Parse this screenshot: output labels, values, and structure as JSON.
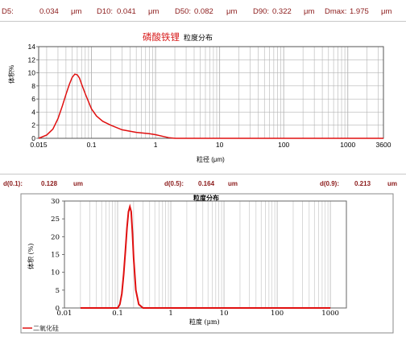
{
  "stats_top": [
    {
      "label": "D5:",
      "value": "0.034",
      "unit": "μm"
    },
    {
      "label": "D10:",
      "value": "0.041",
      "unit": "μm"
    },
    {
      "label": "D50:",
      "value": "0.082",
      "unit": "μm"
    },
    {
      "label": "D90:",
      "value": "0.322",
      "unit": "μm"
    },
    {
      "label": "Dmax:",
      "value": "1.975",
      "unit": "μm"
    }
  ],
  "stats_mid": [
    {
      "label": "d(0.1):",
      "value": "0.128",
      "unit": "um"
    },
    {
      "label": "d(0.5):",
      "value": "0.164",
      "unit": "um"
    },
    {
      "label": "d(0.9):",
      "value": "0.213",
      "unit": "um"
    }
  ],
  "chart1": {
    "title_red": "磷酸铁锂",
    "title_black": "粒度分布",
    "ylabel": "体积%",
    "xlabel": "粒径 (μm)"
  },
  "chart2": {
    "title": "粒度分布",
    "ylabel": "体积 (%)",
    "xlabel": "粒度 (μm)",
    "legend": "二氧化硅"
  },
  "colors": {
    "curve": "#e01010",
    "stat": "#8b1a1a",
    "grid": "#b4b4b4"
  },
  "chart_data": [
    {
      "type": "line",
      "title": "磷酸铁锂 粒度分布",
      "xlabel": "粒径 (μm)",
      "ylabel": "体积%",
      "x_scale": "log",
      "xlim": [
        0.015,
        3600
      ],
      "ylim": [
        0,
        14
      ],
      "grid": true,
      "x_tick_labels": [
        "0.015",
        "0.1",
        "1",
        "10",
        "100",
        "1000",
        "3600"
      ],
      "y_tick_labels": [
        "0",
        "2",
        "4",
        "6",
        "8",
        "10",
        "12",
        "14"
      ],
      "series": [
        {
          "x": [
            0.015,
            0.02,
            0.025,
            0.03,
            0.035,
            0.04,
            0.045,
            0.05,
            0.055,
            0.06,
            0.065,
            0.07,
            0.08,
            0.1,
            0.12,
            0.15,
            0.2,
            0.3,
            0.5,
            0.8,
            1.0,
            1.3,
            1.6,
            2.0,
            5,
            100,
            3600
          ],
          "y": [
            0,
            0.5,
            1.4,
            3.0,
            4.9,
            6.7,
            8.2,
            9.3,
            9.8,
            9.7,
            9.2,
            8.3,
            6.8,
            4.5,
            3.4,
            2.6,
            2.0,
            1.3,
            0.9,
            0.7,
            0.55,
            0.3,
            0.1,
            0,
            0,
            0,
            0
          ]
        }
      ]
    },
    {
      "type": "line",
      "title": "粒度分布",
      "xlabel": "粒度 (μm)",
      "ylabel": "体积 (%)",
      "x_scale": "log",
      "xlim": [
        0.01,
        2000
      ],
      "ylim": [
        0,
        30
      ],
      "grid": true,
      "x_tick_labels": [
        "0.01",
        "0.1",
        "1",
        "10",
        "100",
        "1000"
      ],
      "y_tick_labels": [
        "0",
        "5",
        "10",
        "15",
        "20",
        "25",
        "30"
      ],
      "legend": "bottom-left",
      "series": [
        {
          "name": "二氧化硅",
          "x": [
            0.02,
            0.08,
            0.1,
            0.11,
            0.12,
            0.13,
            0.14,
            0.15,
            0.16,
            0.17,
            0.18,
            0.19,
            0.2,
            0.22,
            0.25,
            0.3,
            1,
            10,
            100,
            1000
          ],
          "y": [
            0,
            0,
            0,
            1,
            4,
            9.5,
            16,
            22.5,
            27,
            28.4,
            27,
            21,
            14,
            5,
            1,
            0,
            0,
            0,
            0,
            0
          ]
        }
      ]
    }
  ]
}
